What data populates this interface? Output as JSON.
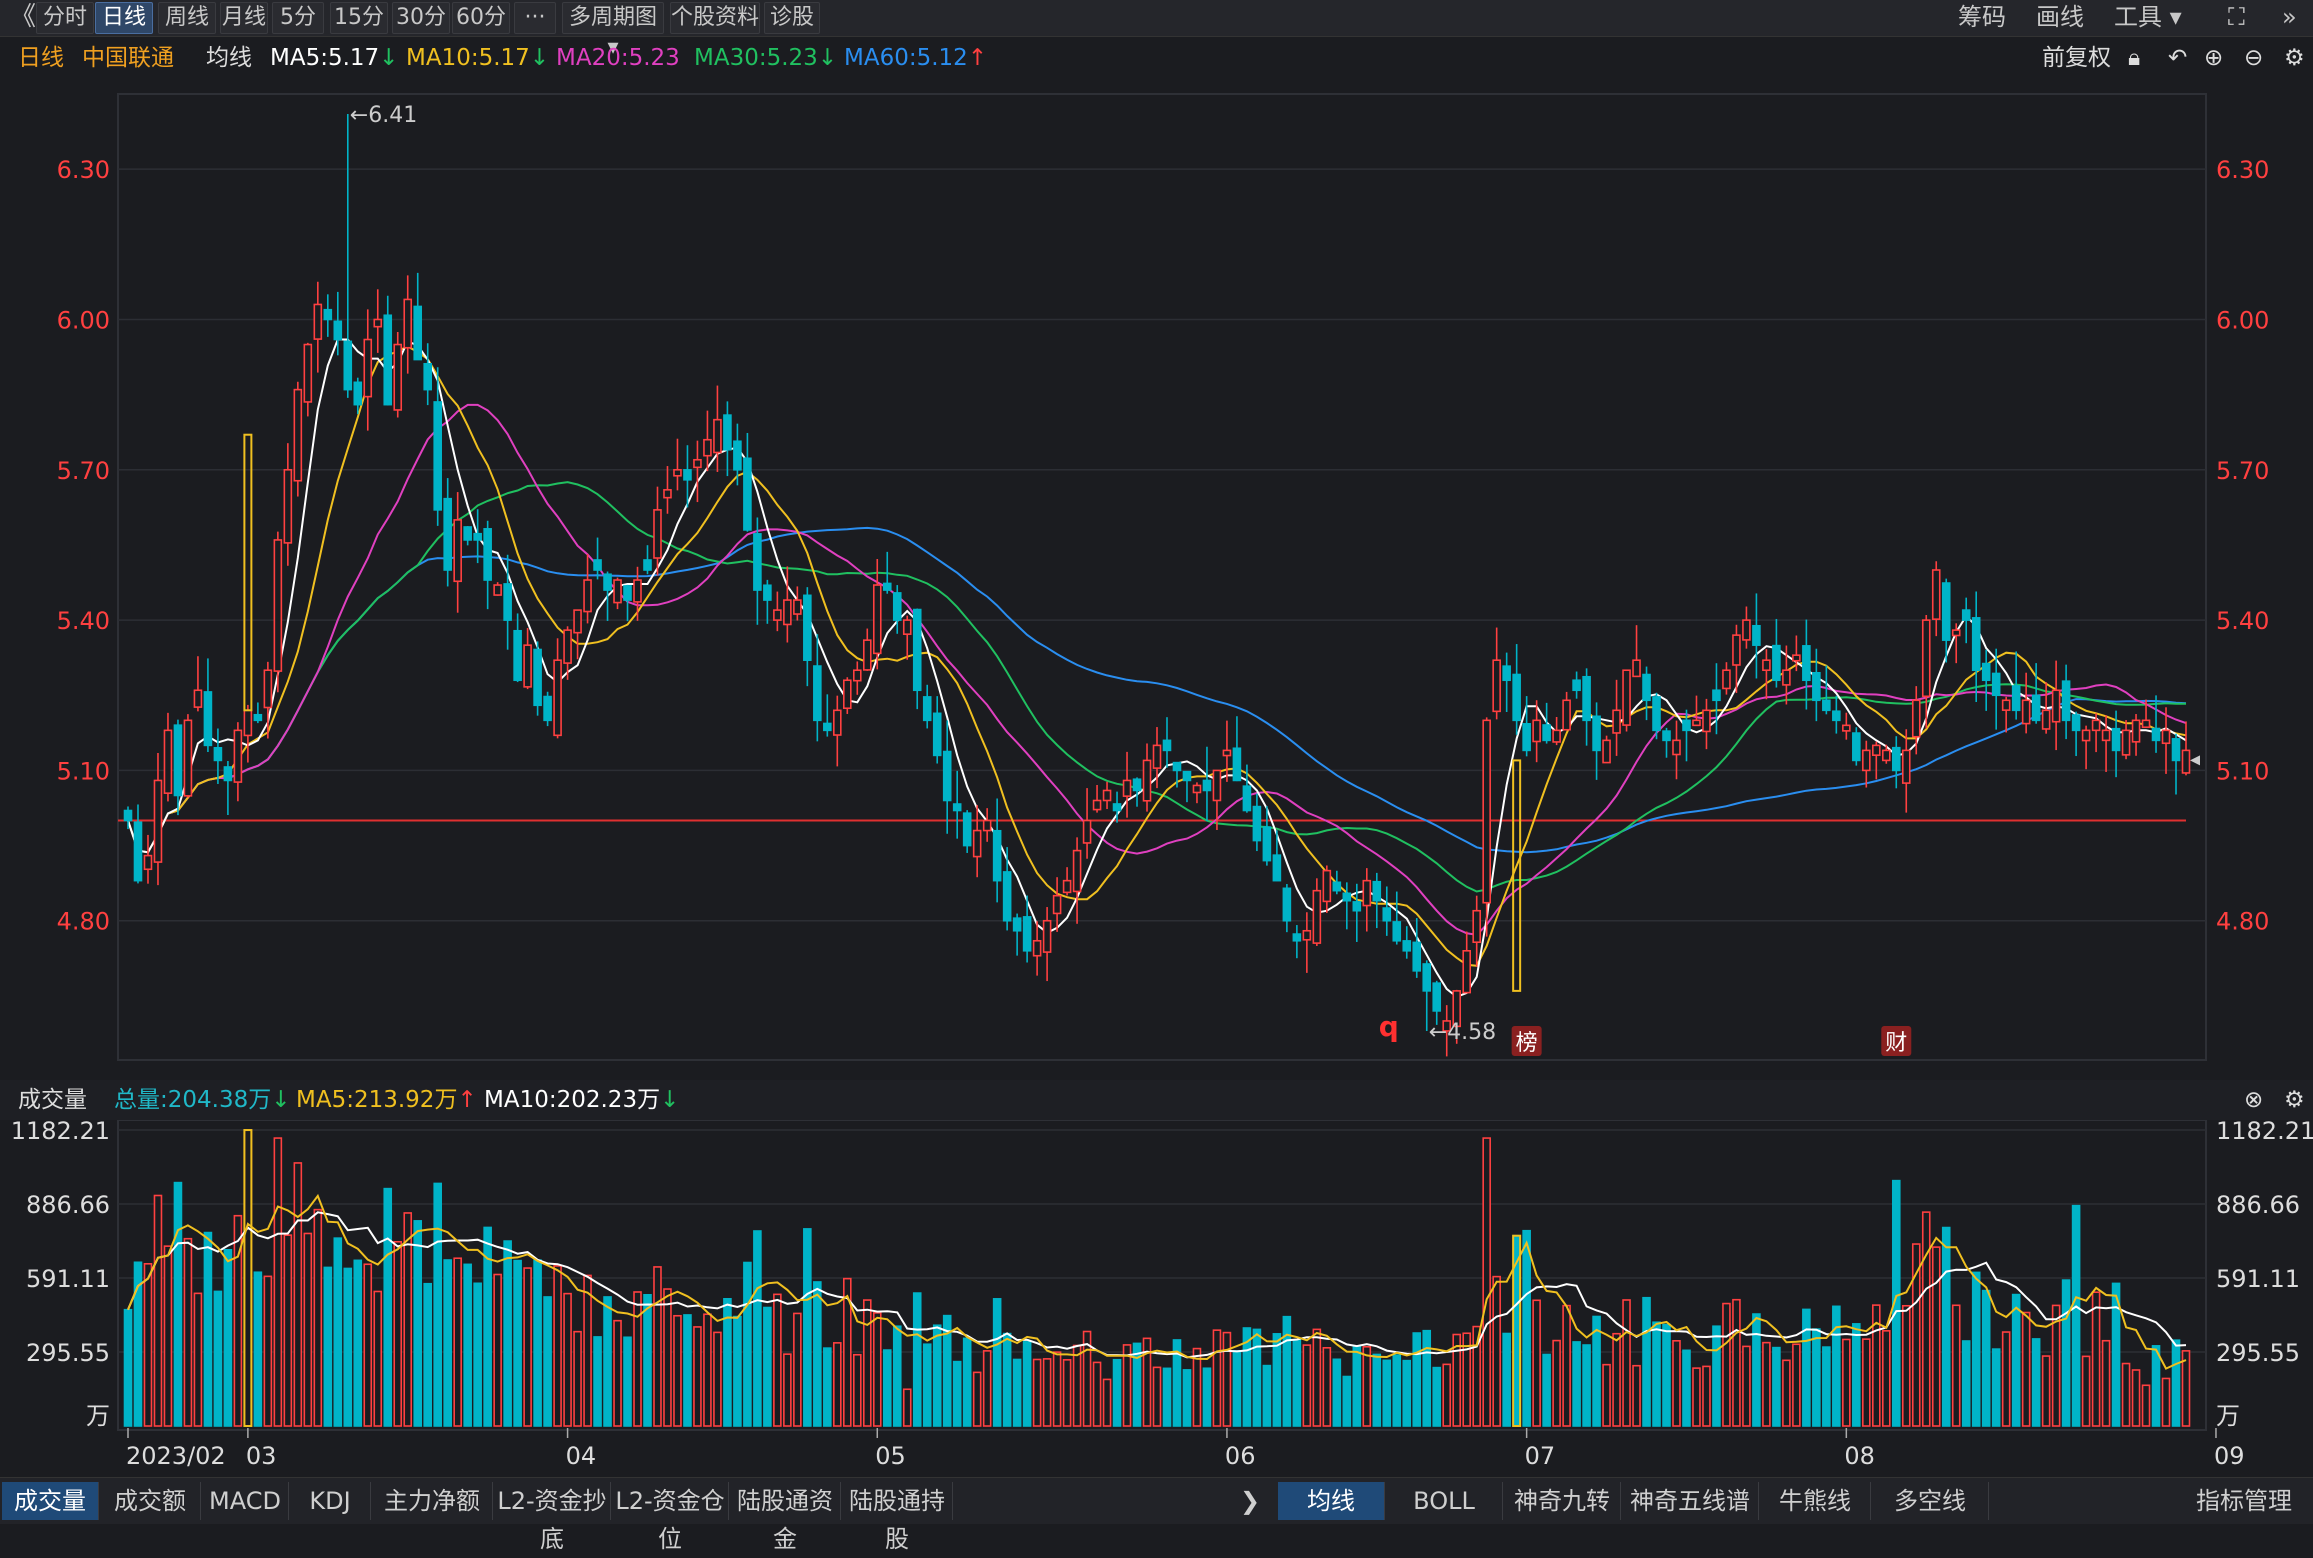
{
  "toolbar": {
    "collapse": "《",
    "tabs": [
      "分时",
      "日线",
      "周线",
      "月线",
      "5分",
      "15分",
      "30分",
      "60分",
      "···",
      "多周期图 ▾",
      "个股资料",
      "诊股"
    ],
    "active_tab": "日线",
    "right": [
      "筹码",
      "画线",
      "工具 ▾"
    ],
    "icons": [
      "expand-icon",
      "double-right-icon"
    ]
  },
  "info": {
    "period": "日线",
    "stock": "中国联通",
    "indicator": "均线",
    "ma5": "MA5:5.17",
    "ma10": "MA10:5.17",
    "ma20": "MA20:5.23",
    "ma30": "MA30:5.23",
    "ma60": "MA60:5.12",
    "ma5_arrow": "↓",
    "ma10_arrow": "↓",
    "ma30_arrow": "↓",
    "ma60_arrow": "↑",
    "adjust": "前复权"
  },
  "volume_info": {
    "label": "成交量",
    "total": "总量:204.38万",
    "total_arrow": "↓",
    "ma5": "MA5:213.92万",
    "ma5_arrow": "↑",
    "ma10": "MA10:202.23万",
    "ma10_arrow": "↓"
  },
  "markers": {
    "high_label": "←6.41",
    "low_label": "←4.58",
    "q_mark": "q",
    "bang": "榜",
    "cai": "财"
  },
  "colors": {
    "up": "#ff4040",
    "down": "#00b4c8",
    "ma5": "#ffffff",
    "ma10": "#f0c020",
    "ma20": "#e040c0",
    "ma30": "#20c060",
    "ma60": "#2a8ef0",
    "ref_line": "#e03030",
    "price_label": "#ff4040"
  },
  "bottom_tabs_left": [
    "成交量",
    "成交额",
    "MACD",
    "KDJ",
    "主力净额",
    "L2-资金抄底",
    "L2-资金仓位",
    "陆股通资金",
    "陆股通持股"
  ],
  "bottom_tabs_right": [
    "均线",
    "BOLL",
    "神奇九转",
    "神奇五线谱",
    "牛熊线",
    "多空线"
  ],
  "bottom_right": "指标管理",
  "bottom_arrow": "❯",
  "chart_data": [
    {
      "type": "candlestick",
      "title": "",
      "ylim": [
        4.55,
        6.45
      ],
      "yticks": [
        "6.30",
        "6.00",
        "5.70",
        "5.40",
        "5.10",
        "4.80"
      ],
      "ytick_values": [
        6.3,
        6.0,
        5.7,
        5.4,
        5.1,
        4.8
      ],
      "xticks": [
        "2023/02",
        "03",
        "04",
        "05",
        "06",
        "07",
        "08",
        "09"
      ],
      "xtick_index": [
        0,
        12,
        44,
        75,
        110,
        140,
        172,
        209
      ],
      "reference_price": 5.0,
      "series_names": [
        "MA5",
        "MA10",
        "MA20",
        "MA30",
        "MA60"
      ],
      "close": [
        5.0,
        4.88,
        4.93,
        5.08,
        5.18,
        5.05,
        5.2,
        5.26,
        5.15,
        5.12,
        5.08,
        5.18,
        5.22,
        5.2,
        5.3,
        5.56,
        5.7,
        5.86,
        5.95,
        6.03,
        6.0,
        5.96,
        5.86,
        5.83,
        5.96,
        6.0,
        5.83,
        5.95,
        6.04,
        5.92,
        5.86,
        5.62,
        5.5,
        5.6,
        5.56,
        5.56,
        5.48,
        5.47,
        5.4,
        5.28,
        5.35,
        5.23,
        5.2,
        5.32,
        5.38,
        5.42,
        5.48,
        5.5,
        5.46,
        5.48,
        5.44,
        5.48,
        5.5,
        5.62,
        5.66,
        5.7,
        5.68,
        5.72,
        5.76,
        5.8,
        5.74,
        5.7,
        5.58,
        5.46,
        5.44,
        5.42,
        5.44,
        5.44,
        5.32,
        5.2,
        5.18,
        5.22,
        5.28,
        5.3,
        5.36,
        5.47,
        5.46,
        5.4,
        5.4,
        5.26,
        5.2,
        5.13,
        5.04,
        5.02,
        4.95,
        4.98,
        5.0,
        4.88,
        4.8,
        4.78,
        4.74,
        4.76,
        4.8,
        4.85,
        4.88,
        4.94,
        5.0,
        5.04,
        5.06,
        5.02,
        5.08,
        5.06,
        5.12,
        5.15,
        5.14,
        5.1,
        5.08,
        5.07,
        5.06,
        5.1,
        5.14,
        5.08,
        5.02,
        4.96,
        4.92,
        4.88,
        4.8,
        4.76,
        4.78,
        4.86,
        4.9,
        4.86,
        4.84,
        4.82,
        4.88,
        4.84,
        4.8,
        4.76,
        4.74,
        4.7,
        4.66,
        4.62,
        4.6,
        4.66,
        4.74,
        4.82,
        5.2,
        5.32,
        5.28,
        5.2,
        5.14,
        5.2,
        5.16,
        5.18,
        5.24,
        5.26,
        5.2,
        5.14,
        5.16,
        5.22,
        5.3,
        5.32,
        5.24,
        5.18,
        5.16,
        5.16,
        5.18,
        5.2,
        5.22,
        5.24,
        5.3,
        5.37,
        5.4,
        5.35,
        5.32,
        5.28,
        5.3,
        5.33,
        5.28,
        5.24,
        5.22,
        5.2,
        5.19,
        5.12,
        5.14,
        5.15,
        5.14,
        5.1,
        5.14,
        5.24,
        5.4,
        5.5,
        5.36,
        5.38,
        5.4,
        5.3,
        5.28,
        5.25,
        5.24,
        5.22,
        5.24,
        5.2,
        5.22,
        5.26,
        5.2,
        5.18,
        5.18,
        5.2,
        5.18,
        5.14,
        5.18,
        5.2,
        5.2,
        5.16,
        5.18,
        5.12,
        5.14
      ]
    },
    {
      "type": "bar",
      "title": "成交量",
      "ylim": [
        0,
        1182.21
      ],
      "yticks": [
        "1182.21",
        "886.66",
        "591.11",
        "295.55"
      ],
      "ytick_values": [
        1182.21,
        886.66,
        591.11,
        295.55
      ],
      "unit": "万",
      "series_names": [
        "MA5",
        "MA10"
      ]
    }
  ]
}
